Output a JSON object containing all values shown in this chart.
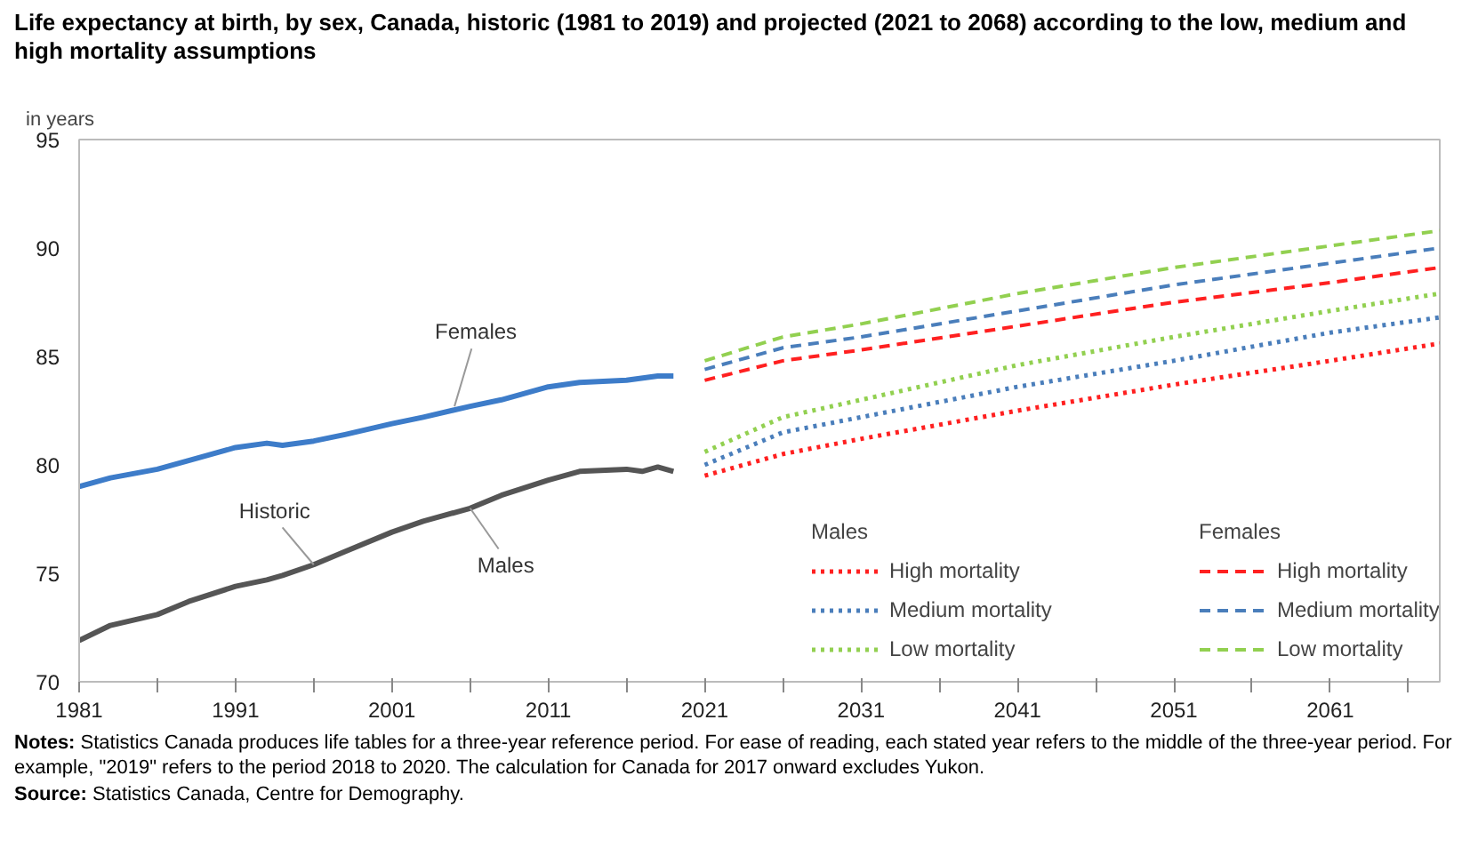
{
  "chart_data": {
    "type": "line",
    "title": "Life expectancy at birth, by sex, Canada, historic (1981 to 2019) and projected (2021 to 2068) according to the low, medium and high mortality assumptions",
    "ylabel": "in years",
    "xlim": [
      1981,
      2068
    ],
    "xticks": [
      1981,
      {
        "value": 1986,
        "label": null
      },
      1991,
      {
        "value": 1996,
        "label": null
      },
      2001,
      {
        "value": 2006,
        "label": null
      },
      2011,
      {
        "value": 2016,
        "label": null
      },
      2021,
      {
        "value": 2026,
        "label": null
      },
      2031,
      {
        "value": 2036,
        "label": null
      },
      2041,
      {
        "value": 2046,
        "label": null
      },
      2051,
      {
        "value": 2056,
        "label": null
      },
      2061,
      {
        "value": 2066,
        "label": null
      }
    ],
    "ylim": [
      70,
      95
    ],
    "yticks": [
      70,
      75,
      80,
      85,
      90,
      95
    ],
    "grid": false,
    "legend": "bottom right",
    "series": [
      {
        "color": "#3d7cc9",
        "line_style": "solid",
        "x": [
          1981,
          1983,
          1986,
          1988,
          1991,
          1993,
          1994,
          1996,
          1998,
          2001,
          2003,
          2006,
          2008,
          2011,
          2013,
          2016,
          2018,
          2019
        ],
        "values": [
          79.0,
          79.4,
          79.8,
          80.2,
          80.8,
          81.0,
          80.9,
          81.1,
          81.4,
          81.9,
          82.2,
          82.7,
          83.0,
          83.6,
          83.8,
          83.9,
          84.1,
          84.1
        ]
      },
      {
        "color": "#555555",
        "line_style": "solid",
        "x": [
          1981,
          1983,
          1986,
          1988,
          1991,
          1993,
          1994,
          1996,
          1998,
          2001,
          2003,
          2006,
          2008,
          2011,
          2013,
          2016,
          2017,
          2018,
          2019
        ],
        "values": [
          71.9,
          72.6,
          73.1,
          73.7,
          74.4,
          74.7,
          74.9,
          75.4,
          76.0,
          76.9,
          77.4,
          78.0,
          78.6,
          79.3,
          79.7,
          79.8,
          79.7,
          79.9,
          79.7
        ]
      },
      {
        "name": "High mortality",
        "color": "#ff2020",
        "line_style": "dotted",
        "x": [
          2021,
          2026,
          2031,
          2041,
          2051,
          2061,
          2068
        ],
        "values": [
          79.5,
          80.5,
          81.2,
          82.5,
          83.7,
          84.8,
          85.6
        ]
      },
      {
        "name": "Medium mortality",
        "color": "#4a7ebb",
        "line_style": "dotted",
        "x": [
          2021,
          2026,
          2031,
          2041,
          2051,
          2061,
          2068
        ],
        "values": [
          80.0,
          81.5,
          82.2,
          83.6,
          84.8,
          86.1,
          86.8
        ]
      },
      {
        "name": "Low mortality",
        "color": "#92d050",
        "line_style": "dotted",
        "x": [
          2021,
          2026,
          2031,
          2041,
          2051,
          2061,
          2068
        ],
        "values": [
          80.6,
          82.2,
          83.0,
          84.6,
          85.9,
          87.1,
          87.9
        ]
      },
      {
        "name": "High mortality",
        "color": "#ff2020",
        "line_style": "dashed",
        "x": [
          2021,
          2026,
          2031,
          2041,
          2051,
          2061,
          2068
        ],
        "values": [
          83.9,
          84.8,
          85.3,
          86.4,
          87.5,
          88.4,
          89.1
        ]
      },
      {
        "name": "Medium mortality",
        "color": "#4a7ebb",
        "line_style": "dashed",
        "x": [
          2021,
          2026,
          2031,
          2041,
          2051,
          2061,
          2068
        ],
        "values": [
          84.4,
          85.4,
          85.9,
          87.1,
          88.3,
          89.3,
          90.0
        ]
      },
      {
        "name": "Low mortality",
        "color": "#92d050",
        "line_style": "dashed",
        "x": [
          2021,
          2026,
          2031,
          2041,
          2051,
          2061,
          2068
        ],
        "values": [
          84.8,
          85.9,
          86.5,
          87.9,
          89.1,
          90.1,
          90.8
        ]
      }
    ],
    "annotations": [
      {
        "text": "Females",
        "x": 2005,
        "y": 82.7
      },
      {
        "text": "Historic",
        "x": 1996,
        "y": 75.4
      },
      {
        "text": "Males",
        "x": 2006,
        "y": 78.0
      },
      "Males",
      "Females",
      "Notes: Statistics Canada produces life tables for a three-year reference period. For ease of reading, each stated year refers to the middle of the three-year period. For example, \"2019\" refers to the period 2018 to 2020. The calculation for Canada for 2017 onward excludes Yukon.",
      "Source: Statistics Canada, Centre for Demography."
    ]
  }
}
